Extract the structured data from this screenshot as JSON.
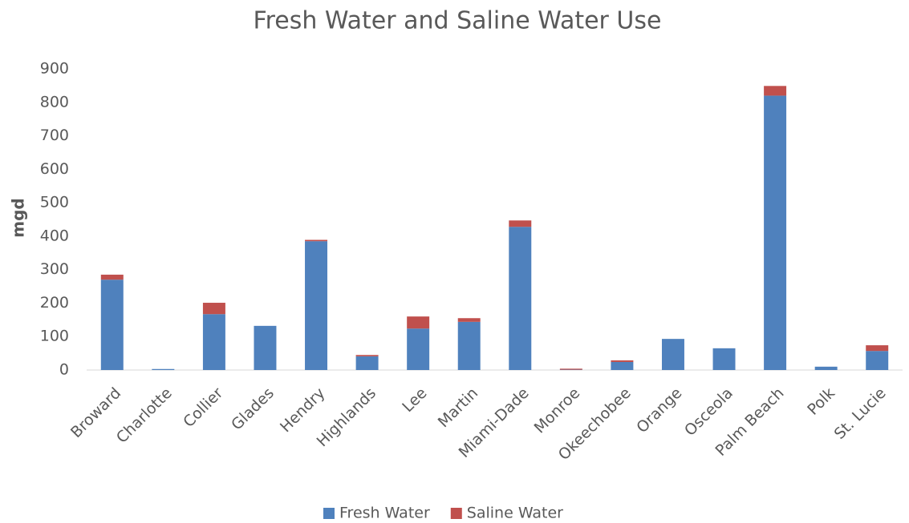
{
  "chart_data": {
    "type": "stacked_bar",
    "title": "Fresh Water and Saline Water Use",
    "y_label": "mgd",
    "categories": [
      "Broward",
      "Charlotte",
      "Collier",
      "Glades",
      "Hendry",
      "Highlands",
      "Lee",
      "Martin",
      "Miami-Dade",
      "Monroe",
      "Okeechobee",
      "Orange",
      "Osceola",
      "Palm Beach",
      "Polk",
      "St. Lucie"
    ],
    "series": [
      {
        "name": "Fresh Water",
        "color": "#4f81bd",
        "values": [
          270,
          3,
          167,
          132,
          385,
          41,
          124,
          144,
          428,
          1,
          24,
          93,
          65,
          820,
          10,
          57
        ]
      },
      {
        "name": "Saline Water",
        "color": "#c0504d",
        "values": [
          15,
          0,
          34,
          0,
          4,
          4,
          36,
          11,
          19,
          3,
          5,
          0,
          0,
          29,
          0,
          17
        ]
      }
    ],
    "ylim": [
      0,
      900
    ],
    "yticks": [
      0,
      100,
      200,
      300,
      400,
      500,
      600,
      700,
      800,
      900
    ],
    "grid": false,
    "legend": "bottom"
  }
}
